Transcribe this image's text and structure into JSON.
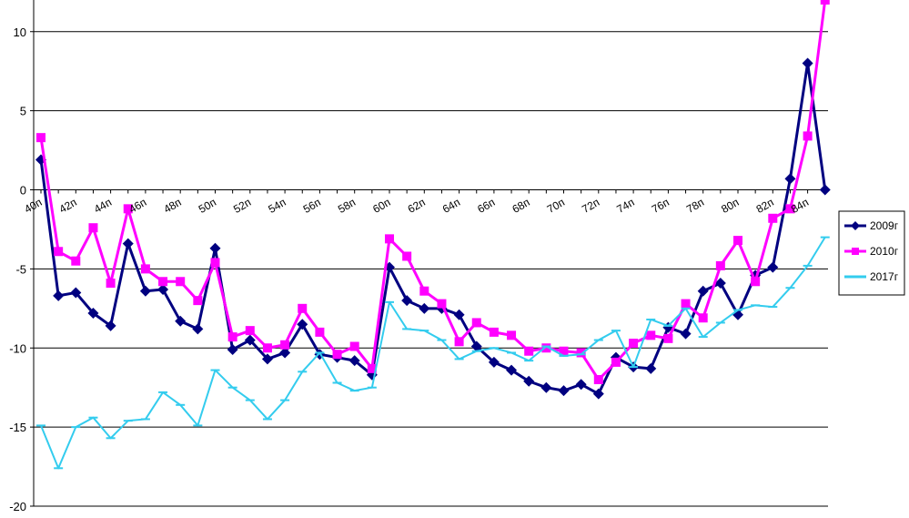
{
  "chart_data": {
    "type": "line",
    "title": "",
    "xlabel": "",
    "ylabel": "",
    "ylim": [
      -20,
      12
    ],
    "y_ticks": [
      10,
      5,
      0,
      -5,
      -10,
      -15,
      -20
    ],
    "grid": "horizontal",
    "legend_position": "right",
    "x_labels": [
      "40п",
      "42п",
      "44п",
      "46п",
      "48п",
      "50п",
      "52п",
      "54п",
      "56п",
      "58п",
      "60п",
      "62п",
      "64п",
      "66п",
      "68п",
      "70п",
      "72п",
      "74п",
      "76п",
      "78п",
      "80п",
      "82п",
      "84п"
    ],
    "series": [
      {
        "name": "2009г",
        "color": "#000080",
        "marker": "diamond",
        "values": [
          1.9,
          -6.7,
          -6.5,
          -7.8,
          -8.6,
          -3.4,
          -6.4,
          -6.3,
          -8.3,
          -8.8,
          -3.7,
          -10.1,
          -9.5,
          -10.7,
          -10.3,
          -8.5,
          -10.4,
          -10.6,
          -10.8,
          -11.7,
          -4.9,
          -7.0,
          -7.5,
          -7.5,
          -7.9,
          -9.9,
          -10.9,
          -11.4,
          -12.1,
          -12.5,
          -12.7,
          -12.3,
          -12.9,
          -10.6,
          -11.2,
          -11.3,
          -8.7,
          -9.1,
          -6.4,
          -5.9,
          -7.9,
          -5.4,
          -4.9,
          0.7,
          8.0,
          0.0
        ]
      },
      {
        "name": "2010г",
        "color": "#ff00ff",
        "marker": "square",
        "values": [
          3.3,
          -3.9,
          -4.5,
          -2.4,
          -5.9,
          -1.2,
          -5.0,
          -5.8,
          -5.8,
          -7.0,
          -4.6,
          -9.3,
          -8.9,
          -10.0,
          -9.8,
          -7.5,
          -9.0,
          -10.4,
          -9.9,
          -11.3,
          -3.1,
          -4.2,
          -6.4,
          -7.2,
          -9.6,
          -8.4,
          -9.0,
          -9.2,
          -10.2,
          -10.0,
          -10.2,
          -10.3,
          -12.0,
          -10.9,
          -9.7,
          -9.2,
          -9.4,
          -7.2,
          -8.1,
          -4.8,
          -3.2,
          -5.8,
          -1.8,
          -1.2,
          3.4,
          12.0
        ]
      },
      {
        "name": "2017г",
        "color": "#33ccee",
        "marker": "dash",
        "values": [
          -14.9,
          -17.6,
          -15.0,
          -14.4,
          -15.7,
          -14.6,
          -14.5,
          -12.8,
          -13.6,
          -14.9,
          -11.4,
          -12.5,
          -13.3,
          -14.5,
          -13.3,
          -11.5,
          -10.3,
          -12.2,
          -12.7,
          -12.5,
          -7.1,
          -8.8,
          -8.9,
          -9.5,
          -10.7,
          -10.2,
          -10.0,
          -10.3,
          -10.8,
          -9.9,
          -10.5,
          -10.4,
          -9.5,
          -8.9,
          -11.2,
          -8.2,
          -8.6,
          -7.5,
          -9.3,
          -8.4,
          -7.6,
          -7.3,
          -7.4,
          -6.2,
          -4.8,
          -3.0
        ]
      }
    ]
  }
}
